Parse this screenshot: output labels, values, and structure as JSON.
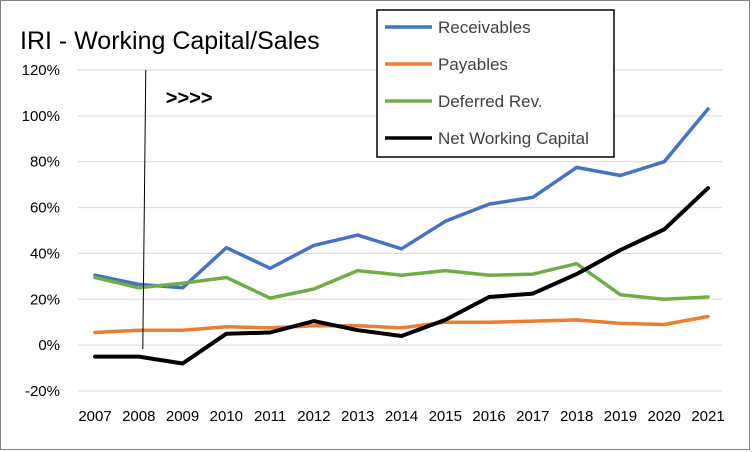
{
  "chart_data": {
    "type": "line",
    "title": "IRI - Working Capital/Sales",
    "xlabel": "",
    "ylabel": "",
    "x": [
      "2007",
      "2008",
      "2009",
      "2010",
      "2011",
      "2012",
      "2013",
      "2014",
      "2015",
      "2016",
      "2017",
      "2018",
      "2019",
      "2020",
      "2021"
    ],
    "ylim": [
      -20,
      120
    ],
    "yticks": [
      -20,
      0,
      20,
      40,
      60,
      80,
      100,
      120
    ],
    "ytick_labels": [
      "-20%",
      "0%",
      "20%",
      "40%",
      "60%",
      "80%",
      "100%",
      "120%"
    ],
    "grid": "horizontal",
    "legend_placement": "top-right",
    "series": [
      {
        "name": "Receivables",
        "color": "#4472c4",
        "values": [
          30.5,
          26.5,
          25,
          42.5,
          33.5,
          43.5,
          48,
          42,
          54,
          61.5,
          64.5,
          77.5,
          74,
          80,
          103
        ]
      },
      {
        "name": "Payables",
        "color": "#ed7d31",
        "values": [
          5.5,
          6.5,
          6.5,
          8,
          7.5,
          8.5,
          8.5,
          7.5,
          10,
          10,
          10.5,
          11,
          9.5,
          9,
          12.5
        ]
      },
      {
        "name": "Deferred Rev.",
        "color": "#70ad47",
        "values": [
          29.5,
          25,
          27,
          29.5,
          20.5,
          24.5,
          32.5,
          30.5,
          32.5,
          30.5,
          31,
          35.5,
          22,
          20,
          21
        ]
      },
      {
        "name": "Net Working Capital",
        "color": "#000000",
        "values": [
          -5,
          -5,
          -8,
          5,
          5.5,
          10.5,
          6.5,
          4,
          11,
          21,
          22.5,
          31,
          41.5,
          50.5,
          68.5
        ]
      }
    ],
    "annotations": [
      {
        "text": ">>>>",
        "x": "2008",
        "y": 108
      }
    ],
    "marker_line": {
      "x": "2008",
      "y_from": 0,
      "y_to": 120
    }
  }
}
